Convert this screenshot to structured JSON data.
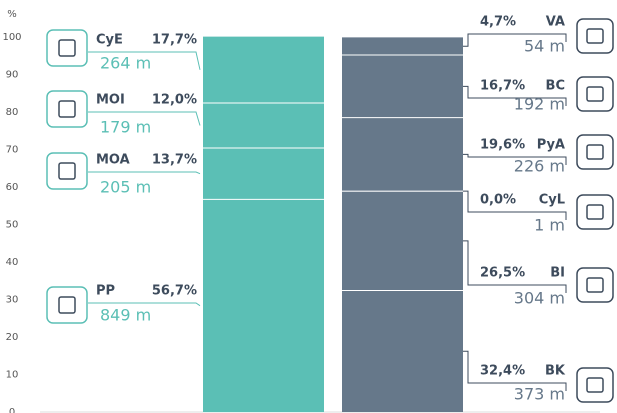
{
  "chart_data": {
    "type": "stacked_bar",
    "y_label": "%",
    "ylim": [
      0,
      100
    ],
    "yticks": [
      0,
      10,
      20,
      30,
      40,
      50,
      60,
      70,
      80,
      90,
      100
    ],
    "stacks": [
      {
        "color": "#5bbfb5",
        "segments": [
          {
            "name": "PP",
            "value": 56.7,
            "value_label": "56,7%",
            "amount": 849,
            "amount_label": "849 m"
          },
          {
            "name": "MOA",
            "value": 13.7,
            "value_label": "13,7%",
            "amount": 205,
            "amount_label": "205 m"
          },
          {
            "name": "MOI",
            "value": 12.0,
            "value_label": "12,0%",
            "amount": 179,
            "amount_label": "179 m"
          },
          {
            "name": "CyE",
            "value": 17.7,
            "value_label": "17,7%",
            "amount": 264,
            "amount_label": "264 m"
          }
        ]
      },
      {
        "color": "#66788a",
        "segments": [
          {
            "name": "BK",
            "value": 32.4,
            "value_label": "32,4%",
            "amount": 373,
            "amount_label": "373 m"
          },
          {
            "name": "BI",
            "value": 26.5,
            "value_label": "26,5%",
            "amount": 304,
            "amount_label": "304 m"
          },
          {
            "name": "CyL",
            "value": 0.0,
            "value_label": "0,0%",
            "amount": 1,
            "amount_label": "1 m"
          },
          {
            "name": "PyA",
            "value": 19.6,
            "value_label": "19,6%",
            "amount": 226,
            "amount_label": "226 m"
          },
          {
            "name": "BC",
            "value": 16.7,
            "value_label": "16,7%",
            "amount": 192,
            "amount_label": "192 m"
          },
          {
            "name": "VA",
            "value": 4.7,
            "value_label": "4,7%",
            "amount": 54,
            "amount_label": "54 m"
          }
        ]
      }
    ]
  }
}
